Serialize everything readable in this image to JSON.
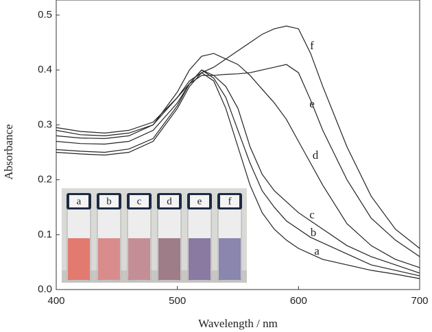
{
  "chart_data": {
    "type": "line",
    "xlabel": "Wavelength / nm",
    "ylabel": "Absorbance",
    "x": [
      400,
      420,
      440,
      460,
      480,
      500,
      510,
      520,
      530,
      540,
      550,
      560,
      570,
      580,
      590,
      600,
      610,
      620,
      640,
      660,
      680,
      700
    ],
    "series": [
      {
        "name": "a",
        "color": "#222222",
        "values": [
          0.25,
          0.247,
          0.245,
          0.25,
          0.27,
          0.33,
          0.37,
          0.395,
          0.38,
          0.33,
          0.26,
          0.19,
          0.14,
          0.11,
          0.09,
          0.075,
          0.065,
          0.055,
          0.045,
          0.035,
          0.028,
          0.02
        ]
      },
      {
        "name": "b",
        "color": "#222222",
        "values": [
          0.255,
          0.252,
          0.25,
          0.256,
          0.275,
          0.335,
          0.375,
          0.4,
          0.385,
          0.35,
          0.29,
          0.23,
          0.18,
          0.15,
          0.125,
          0.11,
          0.095,
          0.085,
          0.065,
          0.045,
          0.035,
          0.025
        ]
      },
      {
        "name": "c",
        "color": "#222222",
        "values": [
          0.27,
          0.266,
          0.265,
          0.27,
          0.29,
          0.34,
          0.375,
          0.4,
          0.39,
          0.37,
          0.33,
          0.26,
          0.21,
          0.18,
          0.16,
          0.14,
          0.125,
          0.11,
          0.08,
          0.06,
          0.045,
          0.03
        ]
      },
      {
        "name": "d",
        "color": "#222222",
        "values": [
          0.28,
          0.276,
          0.275,
          0.28,
          0.3,
          0.36,
          0.4,
          0.425,
          0.43,
          0.42,
          0.41,
          0.39,
          0.365,
          0.34,
          0.31,
          0.27,
          0.23,
          0.19,
          0.12,
          0.08,
          0.055,
          0.04
        ]
      },
      {
        "name": "e",
        "color": "#222222",
        "values": [
          0.29,
          0.282,
          0.28,
          0.285,
          0.3,
          0.35,
          0.375,
          0.39,
          0.39,
          0.392,
          0.393,
          0.395,
          0.4,
          0.405,
          0.41,
          0.395,
          0.345,
          0.29,
          0.2,
          0.13,
          0.09,
          0.06
        ]
      },
      {
        "name": "f",
        "color": "#222222",
        "values": [
          0.295,
          0.288,
          0.285,
          0.29,
          0.305,
          0.35,
          0.38,
          0.395,
          0.405,
          0.42,
          0.435,
          0.45,
          0.465,
          0.475,
          0.48,
          0.475,
          0.43,
          0.37,
          0.26,
          0.17,
          0.11,
          0.075
        ]
      }
    ],
    "xlim": [
      400,
      700
    ],
    "xticks": [
      400,
      500,
      600,
      700
    ],
    "ylim": [
      0,
      0.5
    ],
    "yticks": [
      {
        "value": 0,
        "label": "0.0"
      },
      0.1,
      0.2,
      0.3,
      0.4,
      0.5
    ]
  }
}
